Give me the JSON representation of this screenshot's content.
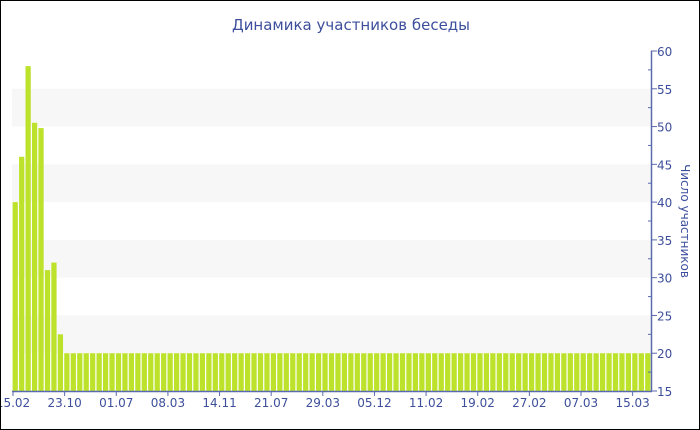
{
  "chart_data": {
    "type": "bar",
    "title": "Динамика участников беседы",
    "ylabel": "Число участников",
    "xlabel": "",
    "ylim": [
      15,
      60
    ],
    "yticks": [
      15,
      20,
      25,
      30,
      35,
      40,
      45,
      50,
      55,
      60
    ],
    "y_axis_position": "right",
    "grid": "alternating horizontal bands",
    "tick_labels": [
      "15.02",
      "23.10",
      "01.07",
      "08.03",
      "14.11",
      "21.07",
      "29.03",
      "05.12",
      "11.02",
      "19.02",
      "27.02",
      "07.03",
      "15.03"
    ],
    "tick_every": 8,
    "values": [
      40,
      46,
      58,
      50.5,
      49.8,
      31,
      32,
      22.5,
      20,
      20,
      20,
      20,
      20,
      20,
      20,
      20,
      20,
      20,
      20,
      20,
      20,
      20,
      20,
      20,
      20,
      20,
      20,
      20,
      20,
      20,
      20,
      20,
      20,
      20,
      20,
      20,
      20,
      20,
      20,
      20,
      20,
      20,
      20,
      20,
      20,
      20,
      20,
      20,
      20,
      20,
      20,
      20,
      20,
      20,
      20,
      20,
      20,
      20,
      20,
      20,
      20,
      20,
      20,
      20,
      20,
      20,
      20,
      20,
      20,
      20,
      20,
      20,
      20,
      20,
      20,
      20,
      20,
      20,
      20,
      20,
      20,
      20,
      20,
      20,
      20,
      20,
      20,
      20,
      20,
      20,
      20,
      20,
      20,
      20,
      20,
      20,
      20,
      20,
      20
    ],
    "colors": {
      "bar": "#bde22c",
      "text": "#3d4f9c",
      "axis": "#5a6aae",
      "band": "#f7f7f7"
    }
  }
}
